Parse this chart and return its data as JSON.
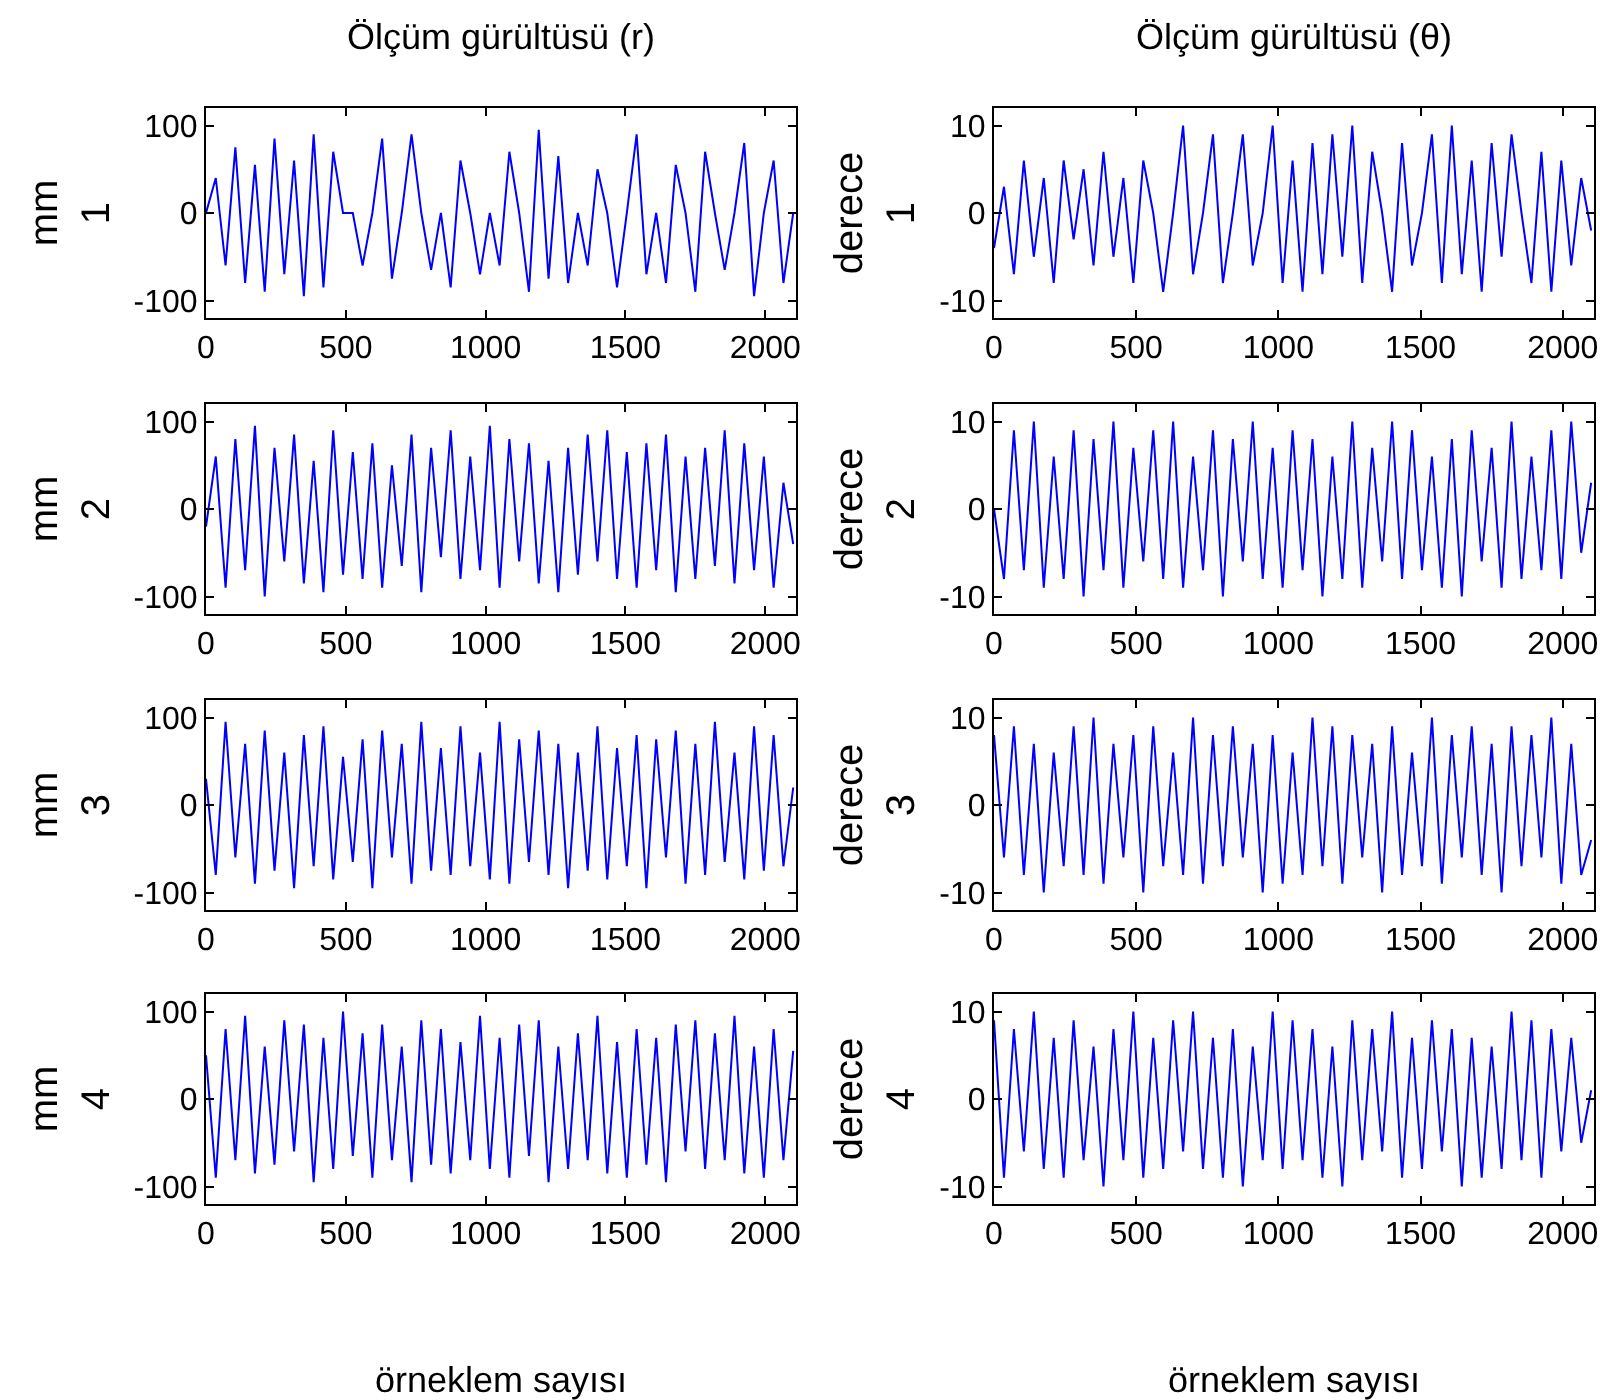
{
  "chart_data": [
    {
      "type": "line",
      "title": "Ölçüm gürültüsü (r)",
      "ylabel": "mm\n1",
      "color": "#0000ff",
      "xlim": [
        0,
        2110
      ],
      "ylim": [
        -120,
        120
      ],
      "xticks": [
        0,
        500,
        1000,
        1500,
        2000
      ],
      "yticks": [
        -100,
        0,
        100
      ],
      "x": [
        0,
        35,
        70,
        105,
        140,
        175,
        210,
        245,
        280,
        315,
        350,
        385,
        420,
        455,
        490,
        525,
        560,
        595,
        630,
        665,
        700,
        735,
        770,
        805,
        840,
        875,
        910,
        945,
        980,
        1015,
        1050,
        1085,
        1120,
        1155,
        1190,
        1225,
        1260,
        1295,
        1330,
        1365,
        1400,
        1435,
        1470,
        1505,
        1540,
        1575,
        1610,
        1645,
        1680,
        1715,
        1750,
        1785,
        1820,
        1855,
        1890,
        1925,
        1960,
        1995,
        2030,
        2065,
        2100
      ],
      "values": [
        0,
        40,
        -60,
        75,
        -80,
        55,
        -90,
        85,
        -70,
        60,
        -95,
        90,
        -85,
        70,
        0,
        0,
        -60,
        0,
        85,
        -75,
        0,
        90,
        0,
        -65,
        0,
        -85,
        60,
        0,
        -70,
        0,
        -60,
        70,
        0,
        -90,
        95,
        -75,
        65,
        -80,
        0,
        -60,
        50,
        0,
        -85,
        0,
        90,
        -70,
        0,
        -80,
        55,
        0,
        -90,
        70,
        0,
        -65,
        0,
        80,
        -95,
        0,
        60,
        -80,
        0
      ]
    },
    {
      "type": "line",
      "title": "Ölçüm gürültüsü (θ)",
      "ylabel": "derece\n1",
      "color": "#0000ff",
      "xlim": [
        0,
        2110
      ],
      "ylim": [
        -12,
        12
      ],
      "xticks": [
        0,
        500,
        1000,
        1500,
        2000
      ],
      "yticks": [
        -10,
        0,
        10
      ],
      "x": [
        0,
        35,
        70,
        105,
        140,
        175,
        210,
        245,
        280,
        315,
        350,
        385,
        420,
        455,
        490,
        525,
        560,
        595,
        630,
        665,
        700,
        735,
        770,
        805,
        840,
        875,
        910,
        945,
        980,
        1015,
        1050,
        1085,
        1120,
        1155,
        1190,
        1225,
        1260,
        1295,
        1330,
        1365,
        1400,
        1435,
        1470,
        1505,
        1540,
        1575,
        1610,
        1645,
        1680,
        1715,
        1750,
        1785,
        1820,
        1855,
        1890,
        1925,
        1960,
        1995,
        2030,
        2065,
        2100
      ],
      "values": [
        -4,
        3,
        -7,
        6,
        -5,
        4,
        -8,
        6,
        -3,
        5,
        -6,
        7,
        -5,
        4,
        -8,
        6,
        0,
        -9,
        0,
        10,
        -7,
        0,
        9,
        -8,
        0,
        9,
        -6,
        0,
        10,
        -8,
        6,
        -9,
        8,
        -7,
        9,
        -5,
        10,
        -8,
        7,
        0,
        -9,
        8,
        -6,
        0,
        9,
        -8,
        10,
        -7,
        6,
        -9,
        8,
        -5,
        9,
        0,
        -8,
        7,
        -9,
        6,
        -6,
        4,
        -2
      ]
    },
    {
      "type": "line",
      "ylabel": "mm\n2",
      "color": "#0000ff",
      "xlim": [
        0,
        2110
      ],
      "ylim": [
        -120,
        120
      ],
      "xticks": [
        0,
        500,
        1000,
        1500,
        2000
      ],
      "yticks": [
        -100,
        0,
        100
      ],
      "x": [
        0,
        35,
        70,
        105,
        140,
        175,
        210,
        245,
        280,
        315,
        350,
        385,
        420,
        455,
        490,
        525,
        560,
        595,
        630,
        665,
        700,
        735,
        770,
        805,
        840,
        875,
        910,
        945,
        980,
        1015,
        1050,
        1085,
        1120,
        1155,
        1190,
        1225,
        1260,
        1295,
        1330,
        1365,
        1400,
        1435,
        1470,
        1505,
        1540,
        1575,
        1610,
        1645,
        1680,
        1715,
        1750,
        1785,
        1820,
        1855,
        1890,
        1925,
        1960,
        1995,
        2030,
        2065,
        2100
      ],
      "values": [
        -20,
        60,
        -90,
        80,
        -70,
        95,
        -100,
        70,
        -60,
        85,
        -85,
        55,
        -95,
        90,
        -75,
        65,
        -80,
        75,
        -90,
        50,
        -65,
        85,
        -95,
        70,
        -55,
        90,
        -80,
        60,
        -70,
        95,
        -90,
        80,
        -60,
        75,
        -85,
        55,
        -95,
        70,
        -75,
        85,
        -60,
        90,
        -80,
        65,
        -90,
        75,
        -70,
        85,
        -95,
        60,
        -80,
        70,
        -65,
        90,
        -85,
        75,
        -70,
        60,
        -90,
        30,
        -40
      ]
    },
    {
      "type": "line",
      "ylabel": "derece\n2",
      "color": "#0000ff",
      "xlim": [
        0,
        2110
      ],
      "ylim": [
        -12,
        12
      ],
      "xticks": [
        0,
        500,
        1000,
        1500,
        2000
      ],
      "yticks": [
        -10,
        0,
        10
      ],
      "x": [
        0,
        35,
        70,
        105,
        140,
        175,
        210,
        245,
        280,
        315,
        350,
        385,
        420,
        455,
        490,
        525,
        560,
        595,
        630,
        665,
        700,
        735,
        770,
        805,
        840,
        875,
        910,
        945,
        980,
        1015,
        1050,
        1085,
        1120,
        1155,
        1190,
        1225,
        1260,
        1295,
        1330,
        1365,
        1400,
        1435,
        1470,
        1505,
        1540,
        1575,
        1610,
        1645,
        1680,
        1715,
        1750,
        1785,
        1820,
        1855,
        1890,
        1925,
        1960,
        1995,
        2030,
        2065,
        2100
      ],
      "values": [
        0,
        -8,
        9,
        -7,
        10,
        -9,
        6,
        -8,
        9,
        -10,
        8,
        -7,
        10,
        -9,
        7,
        -6,
        9,
        -8,
        10,
        -9,
        6,
        -7,
        9,
        -10,
        8,
        -6,
        10,
        -8,
        7,
        -9,
        9,
        -7,
        8,
        -10,
        6,
        -8,
        10,
        -9,
        7,
        -6,
        10,
        -8,
        9,
        -7,
        6,
        -9,
        8,
        -10,
        9,
        -6,
        7,
        -9,
        10,
        -8,
        6,
        -7,
        9,
        -8,
        10,
        -5,
        3
      ]
    },
    {
      "type": "line",
      "ylabel": "mm\n3",
      "color": "#0000ff",
      "xlim": [
        0,
        2110
      ],
      "ylim": [
        -120,
        120
      ],
      "xticks": [
        0,
        500,
        1000,
        1500,
        2000
      ],
      "yticks": [
        -100,
        0,
        100
      ],
      "x": [
        0,
        35,
        70,
        105,
        140,
        175,
        210,
        245,
        280,
        315,
        350,
        385,
        420,
        455,
        490,
        525,
        560,
        595,
        630,
        665,
        700,
        735,
        770,
        805,
        840,
        875,
        910,
        945,
        980,
        1015,
        1050,
        1085,
        1120,
        1155,
        1190,
        1225,
        1260,
        1295,
        1330,
        1365,
        1400,
        1435,
        1470,
        1505,
        1540,
        1575,
        1610,
        1645,
        1680,
        1715,
        1750,
        1785,
        1820,
        1855,
        1890,
        1925,
        1960,
        1995,
        2030,
        2065,
        2100
      ],
      "values": [
        30,
        -80,
        95,
        -60,
        70,
        -90,
        85,
        -75,
        60,
        -95,
        80,
        -70,
        90,
        -85,
        55,
        -65,
        75,
        -95,
        85,
        -60,
        70,
        -90,
        95,
        -75,
        65,
        -80,
        90,
        -70,
        60,
        -85,
        95,
        -90,
        75,
        -65,
        85,
        -80,
        70,
        -95,
        60,
        -75,
        90,
        -85,
        65,
        -70,
        80,
        -95,
        75,
        -60,
        85,
        -90,
        70,
        -80,
        95,
        -65,
        60,
        -85,
        90,
        -75,
        80,
        -70,
        20
      ]
    },
    {
      "type": "line",
      "ylabel": "derece\n3",
      "color": "#0000ff",
      "xlim": [
        0,
        2110
      ],
      "ylim": [
        -12,
        12
      ],
      "xticks": [
        0,
        500,
        1000,
        1500,
        2000
      ],
      "yticks": [
        -10,
        0,
        10
      ],
      "x": [
        0,
        35,
        70,
        105,
        140,
        175,
        210,
        245,
        280,
        315,
        350,
        385,
        420,
        455,
        490,
        525,
        560,
        595,
        630,
        665,
        700,
        735,
        770,
        805,
        840,
        875,
        910,
        945,
        980,
        1015,
        1050,
        1085,
        1120,
        1155,
        1190,
        1225,
        1260,
        1295,
        1330,
        1365,
        1400,
        1435,
        1470,
        1505,
        1540,
        1575,
        1610,
        1645,
        1680,
        1715,
        1750,
        1785,
        1820,
        1855,
        1890,
        1925,
        1960,
        1995,
        2030,
        2065,
        2100
      ],
      "values": [
        8,
        -6,
        9,
        -8,
        7,
        -10,
        6,
        -7,
        9,
        -8,
        10,
        -9,
        7,
        -6,
        8,
        -10,
        9,
        -7,
        6,
        -8,
        10,
        -9,
        8,
        -7,
        9,
        -6,
        7,
        -10,
        8,
        -9,
        6,
        -8,
        10,
        -7,
        9,
        -9,
        8,
        -6,
        7,
        -10,
        9,
        -8,
        6,
        -7,
        10,
        -9,
        8,
        -6,
        9,
        -8,
        7,
        -10,
        9,
        -7,
        8,
        -6,
        10,
        -9,
        7,
        -8,
        -4
      ]
    },
    {
      "type": "line",
      "ylabel": "mm\n4",
      "xlabel": "örneklem sayısı",
      "color": "#0000ff",
      "xlim": [
        0,
        2110
      ],
      "ylim": [
        -120,
        120
      ],
      "xticks": [
        0,
        500,
        1000,
        1500,
        2000
      ],
      "yticks": [
        -100,
        0,
        100
      ],
      "x": [
        0,
        35,
        70,
        105,
        140,
        175,
        210,
        245,
        280,
        315,
        350,
        385,
        420,
        455,
        490,
        525,
        560,
        595,
        630,
        665,
        700,
        735,
        770,
        805,
        840,
        875,
        910,
        945,
        980,
        1015,
        1050,
        1085,
        1120,
        1155,
        1190,
        1225,
        1260,
        1295,
        1330,
        1365,
        1400,
        1435,
        1470,
        1505,
        1540,
        1575,
        1610,
        1645,
        1680,
        1715,
        1750,
        1785,
        1820,
        1855,
        1890,
        1925,
        1960,
        1995,
        2030,
        2065,
        2100
      ],
      "values": [
        50,
        -90,
        80,
        -70,
        95,
        -85,
        60,
        -75,
        90,
        -60,
        85,
        -95,
        70,
        -80,
        100,
        -65,
        75,
        -90,
        85,
        -70,
        60,
        -95,
        90,
        -75,
        80,
        -85,
        65,
        -70,
        95,
        -80,
        70,
        -90,
        85,
        -65,
        90,
        -95,
        60,
        -80,
        75,
        -70,
        95,
        -85,
        65,
        -90,
        80,
        -75,
        70,
        -95,
        85,
        -60,
        90,
        -80,
        75,
        -70,
        95,
        -85,
        60,
        -90,
        80,
        -70,
        55
      ]
    },
    {
      "type": "line",
      "ylabel": "derece\n4",
      "xlabel": "örneklem sayısı",
      "color": "#0000ff",
      "xlim": [
        0,
        2110
      ],
      "ylim": [
        -12,
        12
      ],
      "xticks": [
        0,
        500,
        1000,
        1500,
        2000
      ],
      "yticks": [
        -10,
        0,
        10
      ],
      "x": [
        0,
        35,
        70,
        105,
        140,
        175,
        210,
        245,
        280,
        315,
        350,
        385,
        420,
        455,
        490,
        525,
        560,
        595,
        630,
        665,
        700,
        735,
        770,
        805,
        840,
        875,
        910,
        945,
        980,
        1015,
        1050,
        1085,
        1120,
        1155,
        1190,
        1225,
        1260,
        1295,
        1330,
        1365,
        1400,
        1435,
        1470,
        1505,
        1540,
        1575,
        1610,
        1645,
        1680,
        1715,
        1750,
        1785,
        1820,
        1855,
        1890,
        1925,
        1960,
        1995,
        2030,
        2065,
        2100
      ],
      "values": [
        9,
        -9,
        8,
        -6,
        10,
        -8,
        7,
        -9,
        9,
        -7,
        6,
        -10,
        8,
        -7,
        10,
        -9,
        7,
        -8,
        9,
        -6,
        10,
        -8,
        7,
        -9,
        8,
        -10,
        6,
        -7,
        10,
        -8,
        9,
        -7,
        8,
        -9,
        6,
        -10,
        9,
        -7,
        8,
        -6,
        10,
        -9,
        7,
        -8,
        9,
        -6,
        8,
        -10,
        7,
        -9,
        6,
        -8,
        10,
        -7,
        9,
        -9,
        8,
        -6,
        7,
        -5,
        1
      ]
    }
  ]
}
